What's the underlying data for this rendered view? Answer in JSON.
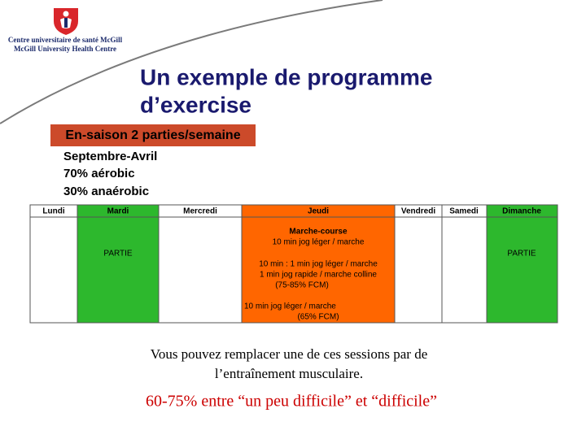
{
  "header": {
    "institution": [
      "Centre universitaire de santé McGill",
      "McGill University Health Centre"
    ],
    "title": [
      "Un exemple de programme",
      "d’exercise"
    ]
  },
  "season_box": "En-saison 2 parties/semaine",
  "details": [
    "Septembre-Avril",
    "70% aérobic",
    "30% anaérobic"
  ],
  "table": {
    "headers": [
      "Lundi",
      "Mardi",
      "Mercredi",
      "Jeudi",
      "Vendredi",
      "Samedi",
      "Dimanche"
    ],
    "mardi": "PARTIE",
    "dimanche": "PARTIE",
    "jeudi": [
      "Marche-course",
      "10 min  jog léger / marche",
      "10 min : 1 min jog léger / marche",
      "1 min jog rapide / marche colline",
      "(75-85% FCM)",
      "10 min jog léger / marche",
      "(65% FCM)"
    ]
  },
  "footer": {
    "lines": [
      "Vous pouvez remplacer une de ces sessions par de",
      "l’entraînement musculaire."
    ],
    "highlight": "60-75% entre “un peu difficile” et “difficile”"
  }
}
